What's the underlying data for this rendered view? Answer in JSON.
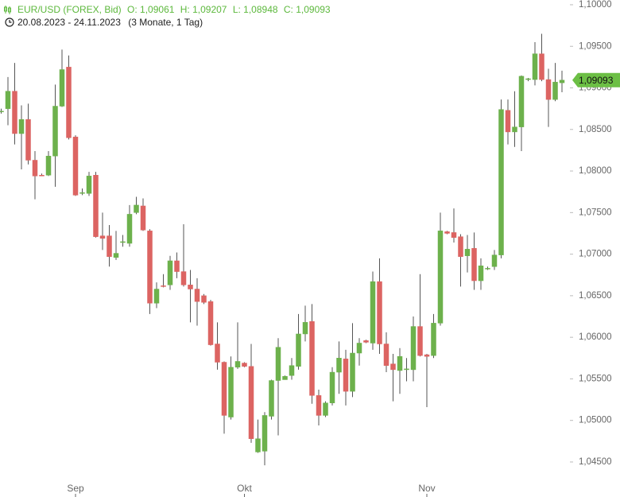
{
  "chart_data": {
    "type": "candlestick",
    "title": "EUR/USD (FOREX, Bid)",
    "ohlc_header": [
      "O: 1,09061",
      "H: 1,09207",
      "L: 1,08948",
      "C: 1,09093"
    ],
    "period": "20.08.2023 - 24.11.2023",
    "period_note": "(3 Monate, 1 Tag)",
    "categories": [
      null,
      null,
      null,
      null,
      null,
      null,
      null,
      null,
      null,
      null,
      null,
      "Sep",
      null,
      null,
      null,
      null,
      null,
      null,
      null,
      null,
      null,
      null,
      null,
      null,
      null,
      null,
      null,
      null,
      null,
      null,
      null,
      null,
      null,
      null,
      null,
      null,
      "Okt",
      null,
      null,
      null,
      null,
      null,
      null,
      null,
      null,
      null,
      null,
      null,
      null,
      null,
      null,
      null,
      null,
      null,
      null,
      null,
      null,
      null,
      null,
      null,
      null,
      null,
      null,
      "Nov",
      null,
      null,
      null,
      null,
      null,
      null,
      null,
      null,
      null,
      null,
      null,
      null,
      null,
      null,
      null,
      null,
      null,
      null,
      null,
      null
    ],
    "open": [
      1.0872,
      1.0875,
      1.0896,
      1.0845,
      1.0862,
      1.0813,
      1.0795,
      1.0795,
      1.0818,
      1.0878,
      1.0925,
      1.0841,
      1.0774,
      1.0773,
      1.0795,
      1.0722,
      1.0722,
      1.0696,
      1.0714,
      1.0713,
      1.075,
      1.0758,
      1.0728,
      1.0641,
      1.0662,
      1.0663,
      1.0692,
      1.0679,
      1.0663,
      1.0658,
      1.065,
      1.0643,
      1.0592,
      1.057,
      1.0504,
      1.0564,
      1.0569,
      1.0565,
      1.0462,
      1.0463,
      1.0505,
      1.0548,
      1.0549,
      1.0554,
      1.0565,
      1.0604,
      1.0619,
      1.053,
      1.0506,
      1.0521,
      1.0558,
      1.0574,
      1.0535,
      1.0581,
      1.0596,
      1.0593,
      1.0667,
      1.0592,
      1.0568,
      1.056,
      1.0561,
      1.0561,
      1.0613,
      1.0579,
      1.0578,
      1.0617,
      1.0727,
      1.0726,
      1.0721,
      1.0698,
      1.0707,
      1.0668,
      1.0683,
      1.0685,
      1.0699,
      1.0873,
      1.0847,
      1.0853,
      1.091,
      1.091,
      1.0941,
      1.091,
      1.0886,
      1.09061
    ],
    "high": [
      1.0875,
      1.0913,
      1.093,
      1.0879,
      1.0881,
      1.0824,
      1.0797,
      1.0824,
      1.0904,
      1.0946,
      1.0939,
      1.0843,
      1.0779,
      1.0799,
      1.0799,
      1.075,
      1.0735,
      1.0728,
      1.0723,
      1.0759,
      1.0769,
      1.0767,
      1.073,
      1.0666,
      1.0676,
      1.0698,
      1.0702,
      1.0736,
      1.0681,
      1.0671,
      1.0652,
      1.0645,
      1.0618,
      1.0571,
      1.0577,
      1.0618,
      1.057,
      1.0592,
      1.0501,
      1.051,
      1.0549,
      1.0599,
      1.0554,
      1.0575,
      1.0628,
      1.0638,
      1.064,
      1.0537,
      1.0523,
      1.0564,
      1.0595,
      1.0585,
      1.0617,
      1.0599,
      1.0597,
      1.0679,
      1.0695,
      1.0606,
      1.058,
      1.0587,
      1.0575,
      1.0625,
      1.0676,
      1.058,
      1.0628,
      1.075,
      1.0728,
      1.0755,
      1.0724,
      1.0723,
      1.0726,
      1.0695,
      1.0685,
      1.0705,
      1.0886,
      1.0886,
      1.0896,
      1.0915,
      1.0912,
      1.0955,
      1.0965,
      1.0923,
      1.093,
      1.09207
    ],
    "low": [
      1.0869,
      1.0855,
      1.0832,
      1.0802,
      1.0808,
      1.0766,
      1.0794,
      1.0794,
      1.0781,
      1.0877,
      1.0838,
      1.077,
      1.0771,
      1.077,
      1.072,
      1.0705,
      1.0685,
      1.0693,
      1.0709,
      1.0709,
      1.0748,
      1.0728,
      1.0628,
      1.0635,
      1.066,
      1.0657,
      1.0671,
      1.0661,
      1.0618,
      1.0614,
      1.064,
      1.059,
      1.0561,
      1.0484,
      1.0501,
      1.0562,
      1.0564,
      1.0473,
      1.0461,
      1.0446,
      1.0501,
      1.0482,
      1.0549,
      1.0549,
      1.0561,
      1.0595,
      1.052,
      1.0494,
      1.0504,
      1.0518,
      1.0532,
      1.0518,
      1.0528,
      1.0566,
      1.0593,
      1.0585,
      1.058,
      1.0558,
      1.0523,
      1.0532,
      1.0547,
      1.0547,
      1.0577,
      1.0516,
      1.0575,
      1.0614,
      1.0724,
      1.0714,
      1.0661,
      1.0678,
      1.0657,
      1.0657,
      1.0681,
      1.0681,
      1.0695,
      1.0832,
      1.0829,
      1.0824,
      1.0908,
      1.0903,
      1.0908,
      1.0853,
      1.0884,
      1.08948
    ],
    "close": [
      1.0872,
      1.0896,
      1.0845,
      1.0862,
      1.0813,
      1.0794,
      1.0794,
      1.0818,
      1.0878,
      1.0922,
      1.084,
      1.0771,
      1.0774,
      1.0794,
      1.0721,
      1.0719,
      1.0697,
      1.0701,
      1.0715,
      1.0748,
      1.0759,
      1.0729,
      1.0641,
      1.0658,
      1.0661,
      1.0692,
      1.0679,
      1.0663,
      1.0658,
      1.0643,
      1.0642,
      1.0591,
      1.057,
      1.0506,
      1.0564,
      1.0571,
      1.0565,
      1.0478,
      1.0478,
      1.0506,
      1.0548,
      1.0588,
      1.0553,
      1.0566,
      1.0604,
      1.0618,
      1.053,
      1.0506,
      1.0521,
      1.0558,
      1.0575,
      1.0535,
      1.0581,
      1.0593,
      1.0594,
      1.0667,
      1.0592,
      1.0566,
      1.0561,
      1.0577,
      1.0562,
      1.0613,
      1.0578,
      1.0577,
      1.0617,
      1.0728,
      1.0725,
      1.072,
      1.0697,
      1.0706,
      1.0668,
      1.0686,
      1.0683,
      1.0699,
      1.0874,
      1.0847,
      1.0853,
      1.0914,
      1.0911,
      1.0941,
      1.091,
      1.0886,
      1.0907,
      1.09093
    ],
    "up_color": "#6db14c",
    "down_color": "#dc6462",
    "ylim": [
      1.04318,
      1.10057
    ],
    "yticks": [
      {
        "value": 1.045,
        "label": "1,04500"
      },
      {
        "value": 1.05,
        "label": "1,05000"
      },
      {
        "value": 1.055,
        "label": "1,05500"
      },
      {
        "value": 1.06,
        "label": "1,06000"
      },
      {
        "value": 1.065,
        "label": "1,06500"
      },
      {
        "value": 1.07,
        "label": "1,07000"
      },
      {
        "value": 1.075,
        "label": "1,07500"
      },
      {
        "value": 1.08,
        "label": "1,08000"
      },
      {
        "value": 1.085,
        "label": "1,08500"
      },
      {
        "value": 1.09,
        "label": "1,09000"
      },
      {
        "value": 1.095,
        "label": "1,09500"
      },
      {
        "value": 1.1,
        "label": "1,10000"
      }
    ],
    "last_price_tag": {
      "value": 1.09093,
      "label": "1,09093"
    },
    "tag_color": "#6cbf45",
    "grid": false
  }
}
